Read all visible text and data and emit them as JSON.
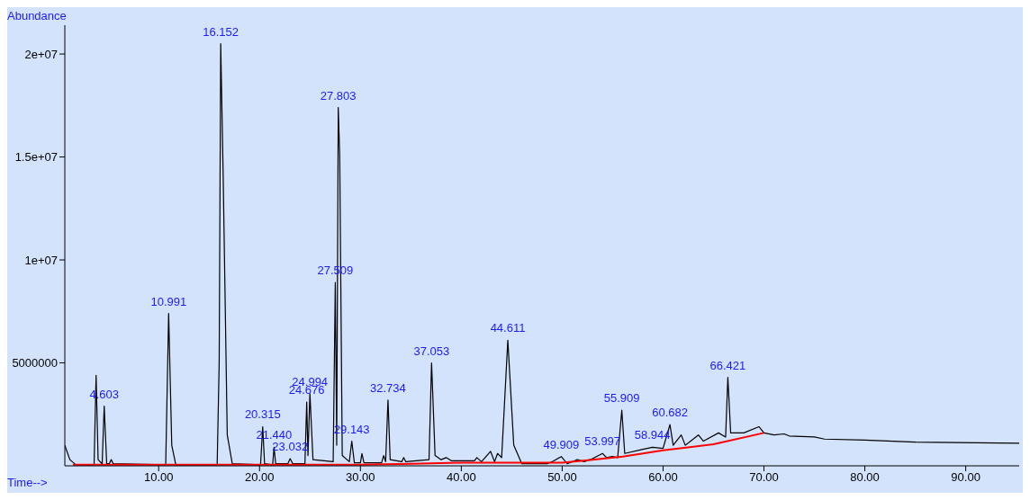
{
  "chart_data": {
    "type": "line",
    "xlabel": "Time-->",
    "ylabel": "Abundance",
    "xlim": [
      0.7,
      95.3
    ],
    "ylim": [
      0,
      21400000
    ],
    "xticks": [
      {
        "value": 10,
        "label": "10.00"
      },
      {
        "value": 20,
        "label": "20.00"
      },
      {
        "value": 30,
        "label": "30.00"
      },
      {
        "value": 40,
        "label": "40.00"
      },
      {
        "value": 50,
        "label": "50.00"
      },
      {
        "value": 60,
        "label": "60.00"
      },
      {
        "value": 70,
        "label": "70.00"
      },
      {
        "value": 80,
        "label": "80.00"
      },
      {
        "value": 90,
        "label": "90.00"
      }
    ],
    "yticks": [
      5000000,
      {
        "value": 10000000,
        "label": "1e+07"
      },
      {
        "value": 15000000,
        "label": "1.5e+07"
      },
      {
        "value": 20000000,
        "label": "2e+07"
      }
    ],
    "grid": false,
    "marker": "none",
    "line_style": "solid",
    "series": [
      {
        "color": "#000000",
        "x": [
          0.7,
          1.2,
          1.8,
          3.6,
          3.8,
          4.0,
          4.4,
          4.603,
          4.85,
          5.1,
          5.3,
          5.5,
          10.7,
          10.991,
          11.3,
          11.7,
          15.8,
          16.0,
          16.152,
          16.4,
          16.8,
          17.3,
          20.1,
          20.315,
          20.5,
          21.3,
          21.44,
          21.6,
          22.8,
          23.032,
          23.3,
          24.5,
          24.676,
          24.8,
          24.994,
          25.3,
          27.3,
          27.509,
          27.65,
          27.803,
          27.95,
          28.2,
          28.9,
          29.143,
          29.4,
          30.0,
          30.152,
          30.35,
          32.1,
          32.304,
          32.5,
          32.734,
          32.95,
          34.1,
          34.29,
          34.5,
          36.8,
          37.053,
          37.4,
          38.0,
          38.5,
          39.0,
          41.3,
          41.543,
          42.0,
          42.902,
          43.3,
          43.593,
          44.0,
          44.611,
          45.2,
          46.0,
          48.5,
          49.0,
          49.909,
          50.5,
          51.5,
          52.2,
          53.0,
          53.997,
          54.4,
          54.956,
          55.5,
          55.909,
          56.2,
          58.0,
          58.944,
          60.0,
          60.682,
          61.0,
          61.8,
          62.2,
          63.5,
          64.0,
          65.5,
          66.2,
          66.421,
          66.7,
          68.0,
          69.5,
          70.0,
          71.0,
          72.0,
          72.5,
          75.0,
          76.0,
          80.0,
          85.0,
          95.3
        ],
        "values": [
          1000000,
          300000,
          50000,
          50000,
          4400000,
          300000,
          100000,
          2900000,
          100000,
          100000,
          300000,
          100000,
          50000,
          7400000,
          1000000,
          50000,
          50000,
          5000000,
          20500000,
          14000000,
          1500000,
          100000,
          50000,
          1900000,
          100000,
          50000,
          900000,
          100000,
          100000,
          350000,
          100000,
          100000,
          3100000,
          500000,
          3500000,
          300000,
          200000,
          8900000,
          1000000,
          17400000,
          15000000,
          500000,
          200000,
          1200000,
          150000,
          150000,
          600000,
          150000,
          150000,
          500000,
          200000,
          3200000,
          300000,
          200000,
          400000,
          200000,
          300000,
          5000000,
          500000,
          300000,
          400000,
          250000,
          250000,
          400000,
          200000,
          700000,
          200000,
          600000,
          400000,
          6100000,
          1000000,
          100000,
          100000,
          200000,
          450000,
          100000,
          300000,
          200000,
          350000,
          600000,
          400000,
          450000,
          400000,
          2700000,
          600000,
          800000,
          900000,
          850000,
          2000000,
          1000000,
          1500000,
          1000000,
          1500000,
          1200000,
          1600000,
          1400000,
          4300000,
          1600000,
          1600000,
          1900000,
          1600000,
          1500000,
          1550000,
          1450000,
          1400000,
          1300000,
          1250000,
          1150000,
          1100000
        ]
      },
      {
        "color": "#ff0000",
        "x": [
          1.5,
          25,
          30,
          35,
          40,
          45,
          50,
          53,
          56,
          60,
          65,
          70
        ],
        "values": [
          50000,
          50000,
          50000,
          100000,
          150000,
          150000,
          150000,
          300000,
          450000,
          750000,
          1050000,
          1600000
        ]
      }
    ],
    "annotations": [
      {
        "text": "4.603",
        "x": 4.603,
        "y": 2900000
      },
      {
        "text": "10.991",
        "x": 10.991,
        "y": 7400000
      },
      {
        "text": "16.152",
        "x": 16.152,
        "y": 20500000
      },
      {
        "text": "20.315",
        "x": 20.315,
        "y": 1900000
      },
      {
        "text": "21.440",
        "x": 21.44,
        "y": 900000
      },
      {
        "text": "23.032",
        "x": 23.032,
        "y": 350000
      },
      {
        "text": "24.676",
        "x": 24.676,
        "y": 3100000
      },
      {
        "text": "24.994",
        "x": 24.994,
        "y": 3500000
      },
      {
        "text": "27.509",
        "x": 27.509,
        "y": 8900000
      },
      {
        "text": "27.803",
        "x": 27.803,
        "y": 17400000
      },
      {
        "text": "29.143",
        "x": 29.143,
        "y": 1200000
      },
      {
        "text": "32.734",
        "x": 32.734,
        "y": 3200000
      },
      {
        "text": "37.053",
        "x": 37.053,
        "y": 5000000
      },
      {
        "text": "44.611",
        "x": 44.611,
        "y": 6100000
      },
      {
        "text": "49.909",
        "x": 49.909,
        "y": 450000
      },
      {
        "text": "53.997",
        "x": 53.997,
        "y": 600000
      },
      {
        "text": "55.909",
        "x": 55.909,
        "y": 2700000
      },
      {
        "text": "58.944",
        "x": 58.944,
        "y": 900000
      },
      {
        "text": "60.682",
        "x": 60.682,
        "y": 2000000
      },
      {
        "text": "66.421",
        "x": 66.421,
        "y": 4300000
      }
    ]
  }
}
